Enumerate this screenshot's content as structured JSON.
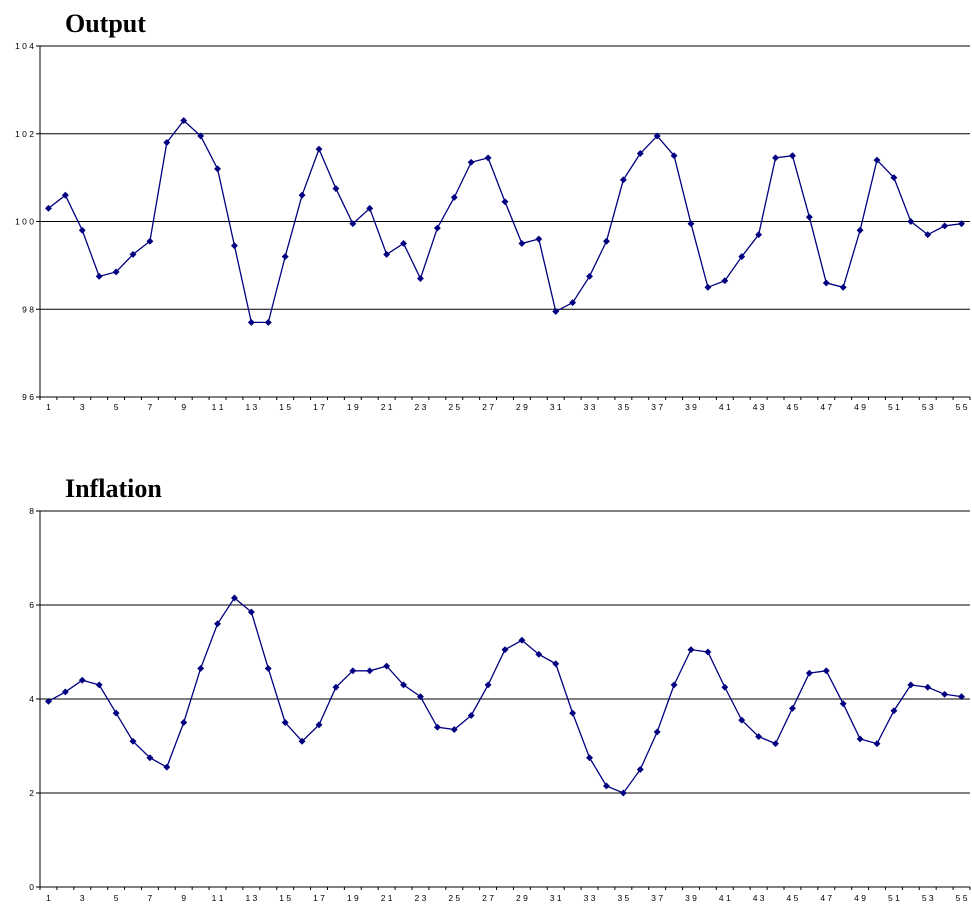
{
  "chart_data": [
    {
      "type": "line",
      "title": "Output",
      "xlabel": "",
      "ylabel": "",
      "ylim": [
        96,
        104
      ],
      "yticks": [
        96,
        98,
        100,
        102,
        104
      ],
      "grid": true,
      "line_color": "#000080",
      "x": [
        1,
        2,
        3,
        4,
        5,
        6,
        7,
        8,
        9,
        10,
        11,
        12,
        13,
        14,
        15,
        16,
        17,
        18,
        19,
        20,
        21,
        22,
        23,
        24,
        25,
        26,
        27,
        28,
        29,
        30,
        31,
        32,
        33,
        34,
        35,
        36,
        37,
        38,
        39,
        40,
        41,
        42,
        43,
        44,
        45,
        46,
        47,
        48,
        49,
        50,
        51,
        52,
        53,
        54,
        55
      ],
      "xtick_labels": [
        "1",
        "3",
        "5",
        "7",
        "9",
        "11",
        "13",
        "15",
        "17",
        "19",
        "21",
        "23",
        "25",
        "27",
        "29",
        "31",
        "33",
        "35",
        "37",
        "39",
        "41",
        "43",
        "45",
        "47",
        "49",
        "51",
        "53",
        "55"
      ],
      "values": [
        100.3,
        100.6,
        99.8,
        98.75,
        98.85,
        99.25,
        99.55,
        101.8,
        102.3,
        101.95,
        101.2,
        99.45,
        97.7,
        97.7,
        99.2,
        100.6,
        101.65,
        100.75,
        99.95,
        100.3,
        99.25,
        99.5,
        98.7,
        99.85,
        100.55,
        101.35,
        101.45,
        100.45,
        99.5,
        99.6,
        97.95,
        98.15,
        98.75,
        99.55,
        100.95,
        101.55,
        101.95,
        101.5,
        99.95,
        98.5,
        98.65,
        99.2,
        99.7,
        101.45,
        101.5,
        100.1,
        98.6,
        98.5,
        99.8,
        101.4,
        101.0,
        100.0,
        99.7,
        99.9,
        99.95
      ]
    },
    {
      "type": "line",
      "title": "Inflation",
      "xlabel": "",
      "ylabel": "",
      "ylim": [
        0,
        8
      ],
      "yticks": [
        0,
        2,
        4,
        6,
        8
      ],
      "grid": true,
      "line_color": "#000080",
      "x": [
        1,
        2,
        3,
        4,
        5,
        6,
        7,
        8,
        9,
        10,
        11,
        12,
        13,
        14,
        15,
        16,
        17,
        18,
        19,
        20,
        21,
        22,
        23,
        24,
        25,
        26,
        27,
        28,
        29,
        30,
        31,
        32,
        33,
        34,
        35,
        36,
        37,
        38,
        39,
        40,
        41,
        42,
        43,
        44,
        45,
        46,
        47,
        48,
        49,
        50,
        51,
        52,
        53,
        54,
        55
      ],
      "xtick_labels": [
        "1",
        "3",
        "5",
        "7",
        "9",
        "11",
        "13",
        "15",
        "17",
        "19",
        "21",
        "23",
        "25",
        "27",
        "29",
        "31",
        "33",
        "35",
        "37",
        "39",
        "41",
        "43",
        "45",
        "47",
        "49",
        "51",
        "53",
        "55"
      ],
      "values": [
        3.95,
        4.15,
        4.4,
        4.3,
        3.7,
        3.1,
        2.75,
        2.55,
        3.5,
        4.65,
        5.6,
        6.15,
        5.85,
        4.65,
        3.5,
        3.1,
        3.45,
        4.25,
        4.6,
        4.6,
        4.7,
        4.3,
        4.05,
        3.4,
        3.35,
        3.65,
        4.3,
        5.05,
        5.25,
        4.95,
        4.75,
        3.7,
        2.75,
        2.15,
        2.0,
        2.5,
        3.3,
        4.3,
        5.05,
        5.0,
        4.25,
        3.55,
        3.2,
        3.05,
        3.8,
        4.55,
        4.6,
        3.9,
        3.15,
        3.05,
        3.75,
        4.3,
        4.25,
        4.1,
        4.05
      ]
    }
  ]
}
